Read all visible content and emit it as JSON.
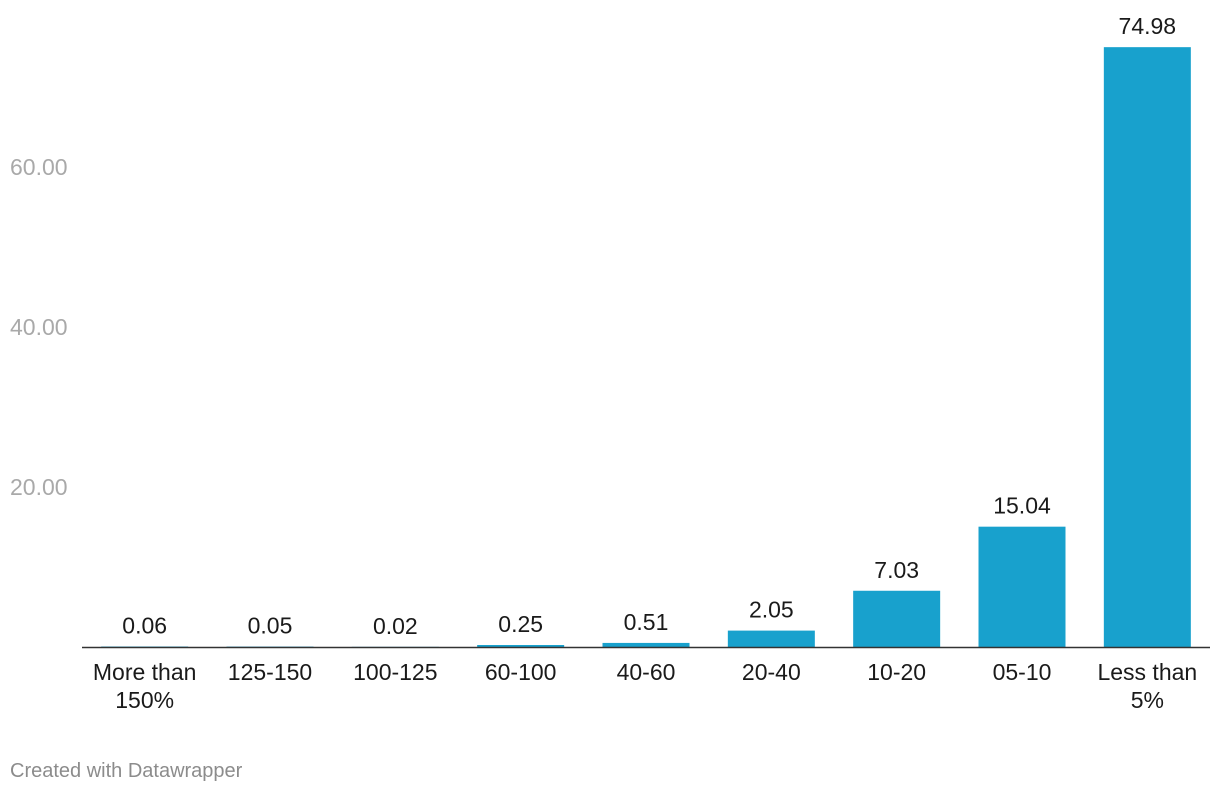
{
  "colors": {
    "bar": "#18a1cd",
    "axis_line": "#333333",
    "tick_text": "#a9a9a9",
    "label_text": "#1a1a1a",
    "credit_text": "#8c8c8c"
  },
  "chart_data": {
    "type": "bar",
    "categories": [
      [
        "More than",
        "150%"
      ],
      [
        "125-150"
      ],
      [
        "100-125"
      ],
      [
        "60-100"
      ],
      [
        "40-60"
      ],
      [
        "20-40"
      ],
      [
        "10-20"
      ],
      [
        "05-10"
      ],
      [
        "Less than",
        "5%"
      ]
    ],
    "values": [
      0.06,
      0.05,
      0.02,
      0.25,
      0.51,
      2.05,
      7.03,
      15.04,
      74.98
    ],
    "value_labels": [
      "0.06",
      "0.05",
      "0.02",
      "0.25",
      "0.51",
      "2.05",
      "7.03",
      "15.04",
      "74.98"
    ],
    "y_ticks": [
      20,
      40,
      60
    ],
    "y_tick_labels": [
      "20.00",
      "40.00",
      "60.00"
    ],
    "ylim": [
      0,
      75
    ],
    "grid": false,
    "title": "",
    "xlabel": "",
    "ylabel": ""
  },
  "footer": {
    "credit": "Created with Datawrapper"
  }
}
